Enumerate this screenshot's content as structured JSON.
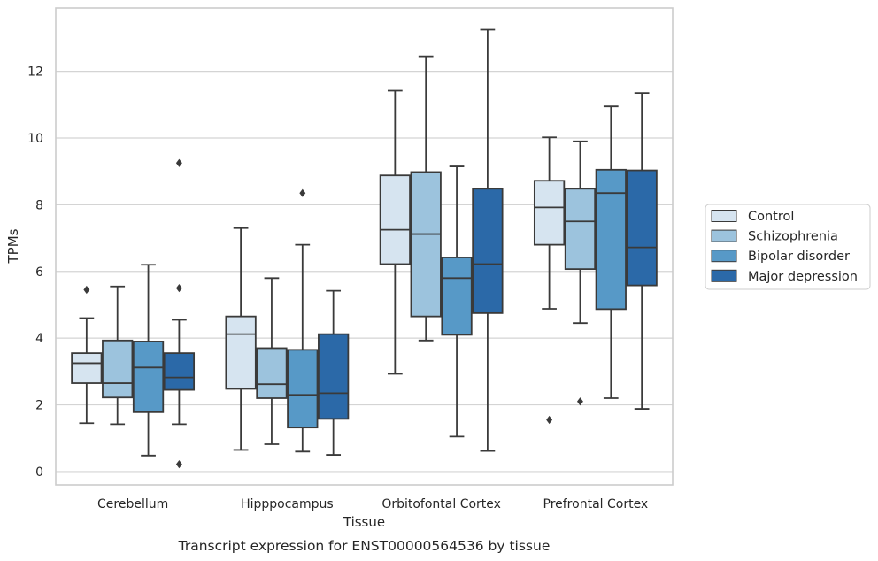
{
  "chart_data": {
    "type": "boxplot",
    "title": "",
    "caption": "Transcript expression for ENST00000564536 by tissue",
    "xlabel": "Tissue",
    "ylabel": "TPMs",
    "ylim": [
      -0.4,
      13.9
    ],
    "yticks": [
      0,
      2,
      4,
      6,
      8,
      10,
      12
    ],
    "grid": "horizontal",
    "legend_position": "right",
    "categories": [
      "Cerebellum",
      "Hipppocampus",
      "Orbitofontal Cortex",
      "Prefrontal Cortex"
    ],
    "series": [
      {
        "name": "Control",
        "color": "#d6e4f0",
        "boxes": [
          {
            "whislo": 1.45,
            "q1": 2.65,
            "med": 3.25,
            "q3": 3.55,
            "whishi": 4.6,
            "fliers": [
              5.45
            ]
          },
          {
            "whislo": 0.65,
            "q1": 2.48,
            "med": 4.12,
            "q3": 4.65,
            "whishi": 7.3,
            "fliers": []
          },
          {
            "whislo": 2.93,
            "q1": 6.22,
            "med": 7.25,
            "q3": 8.88,
            "whishi": 11.42,
            "fliers": []
          },
          {
            "whislo": 4.88,
            "q1": 6.8,
            "med": 7.92,
            "q3": 8.72,
            "whishi": 10.02,
            "fliers": [
              1.55
            ]
          }
        ]
      },
      {
        "name": "Schizophrenia",
        "color": "#9cc3dd",
        "boxes": [
          {
            "whislo": 1.42,
            "q1": 2.22,
            "med": 2.65,
            "q3": 3.93,
            "whishi": 5.55,
            "fliers": []
          },
          {
            "whislo": 0.82,
            "q1": 2.2,
            "med": 2.62,
            "q3": 3.7,
            "whishi": 5.8,
            "fliers": []
          },
          {
            "whislo": 3.93,
            "q1": 4.65,
            "med": 7.12,
            "q3": 8.98,
            "whishi": 12.45,
            "fliers": []
          },
          {
            "whislo": 4.45,
            "q1": 6.07,
            "med": 7.5,
            "q3": 8.48,
            "whishi": 9.9,
            "fliers": [
              2.1
            ]
          }
        ]
      },
      {
        "name": "Bipolar disorder",
        "color": "#5799c7",
        "boxes": [
          {
            "whislo": 0.48,
            "q1": 1.78,
            "med": 3.12,
            "q3": 3.9,
            "whishi": 6.2,
            "fliers": []
          },
          {
            "whislo": 0.6,
            "q1": 1.32,
            "med": 2.3,
            "q3": 3.65,
            "whishi": 6.8,
            "fliers": [
              8.35
            ]
          },
          {
            "whislo": 1.05,
            "q1": 4.1,
            "med": 5.8,
            "q3": 6.42,
            "whishi": 9.15,
            "fliers": []
          },
          {
            "whislo": 2.2,
            "q1": 4.87,
            "med": 8.35,
            "q3": 9.05,
            "whishi": 10.95,
            "fliers": []
          }
        ]
      },
      {
        "name": "Major depression",
        "color": "#2b69a8",
        "boxes": [
          {
            "whislo": 1.42,
            "q1": 2.45,
            "med": 2.82,
            "q3": 3.55,
            "whishi": 4.55,
            "fliers": [
              9.25,
              5.5,
              0.22
            ]
          },
          {
            "whislo": 0.5,
            "q1": 1.58,
            "med": 2.35,
            "q3": 4.12,
            "whishi": 5.42,
            "fliers": []
          },
          {
            "whislo": 0.62,
            "q1": 4.75,
            "med": 6.22,
            "q3": 8.48,
            "whishi": 13.25,
            "fliers": []
          },
          {
            "whislo": 1.88,
            "q1": 5.58,
            "med": 6.72,
            "q3": 9.03,
            "whishi": 11.35,
            "fliers": []
          }
        ]
      }
    ]
  }
}
